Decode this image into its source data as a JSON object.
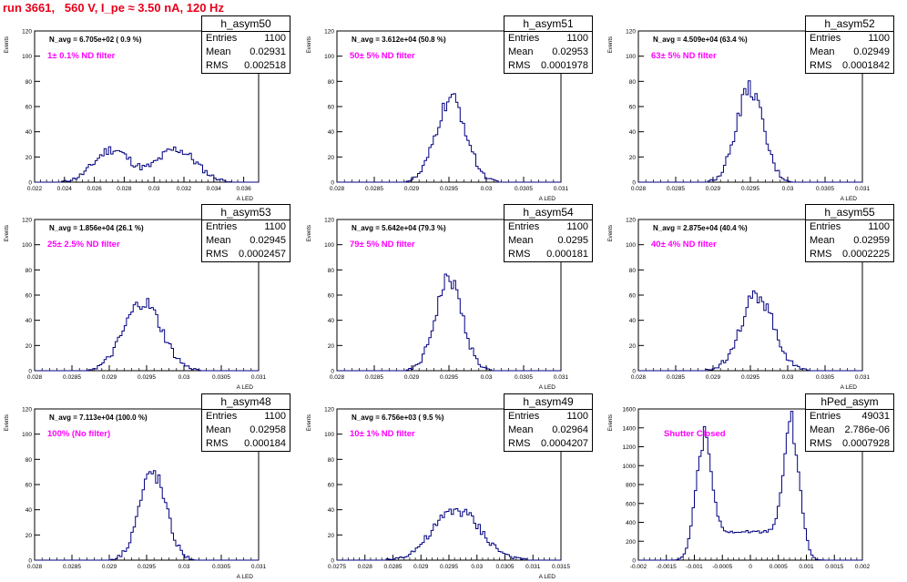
{
  "run_title": "run 3661,   560 V, I_pe ≈ 3.50 nA, 120 Hz",
  "stats_labels": {
    "entries": "Entries",
    "mean": "Mean",
    "rms": "RMS"
  },
  "colors": {
    "title": "#e8001a",
    "histogram": "#000080",
    "filter_text": "#ff00ff"
  },
  "chart_data": [
    {
      "type": "histogram",
      "name": "h_asym50",
      "navg": "N_avg = 6.705e+02 ( 0.9 %)",
      "filter": "1± 0.1% ND filter",
      "stats": {
        "entries": "1100",
        "mean": "0.02931",
        "rms": "0.002518"
      },
      "xlim": [
        0.022,
        0.037
      ],
      "xticks": [
        0.022,
        0.024,
        0.026,
        0.028,
        0.03,
        0.032,
        0.034,
        0.036
      ],
      "xticklabels": [
        "0.022",
        "0.024",
        "0.026",
        "0.028",
        "0.03",
        "0.032",
        "0.034",
        "0.036"
      ],
      "ylim": [
        0,
        120
      ],
      "yticks": [
        0,
        20,
        40,
        60,
        80,
        100,
        120
      ],
      "ylabel": "Events",
      "xlabel": "A_LED",
      "grid": false,
      "peaks": [
        {
          "mu": 0.0272,
          "sigma": 0.0012,
          "amp": 26
        },
        {
          "mu": 0.0315,
          "sigma": 0.0013,
          "amp": 26
        }
      ]
    },
    {
      "type": "histogram",
      "name": "h_asym51",
      "navg": "N_avg = 3.612e+04 (50.8 %)",
      "filter": "50± 5% ND filter",
      "stats": {
        "entries": "1100",
        "mean": "0.02953",
        "rms": "0.0001978"
      },
      "xlim": [
        0.028,
        0.031
      ],
      "xticks": [
        0.028,
        0.0285,
        0.029,
        0.0295,
        0.03,
        0.0305,
        0.031
      ],
      "xticklabels": [
        "0.028",
        "0.0285",
        "0.029",
        "0.0295",
        "0.03",
        "0.0305",
        "0.031"
      ],
      "ylim": [
        0,
        120
      ],
      "yticks": [
        0,
        20,
        40,
        60,
        80,
        100,
        120
      ],
      "ylabel": "Events",
      "xlabel": "A_LED",
      "grid": false,
      "peaks": [
        {
          "mu": 0.02953,
          "sigma": 0.0002,
          "amp": 66
        }
      ]
    },
    {
      "type": "histogram",
      "name": "h_asym52",
      "navg": "N_avg = 4.509e+04 (63.4 %)",
      "filter": "63± 5% ND filter",
      "stats": {
        "entries": "1100",
        "mean": "0.02949",
        "rms": "0.0001842"
      },
      "xlim": [
        0.028,
        0.031
      ],
      "xticks": [
        0.028,
        0.0285,
        0.029,
        0.0295,
        0.03,
        0.0305,
        0.031
      ],
      "xticklabels": [
        "0.028",
        "0.0285",
        "0.029",
        "0.0295",
        "0.03",
        "0.0305",
        "0.031"
      ],
      "ylim": [
        0,
        120
      ],
      "yticks": [
        0,
        20,
        40,
        60,
        80,
        100,
        120
      ],
      "ylabel": "Events",
      "xlabel": "A_LED",
      "grid": false,
      "peaks": [
        {
          "mu": 0.02949,
          "sigma": 0.00018,
          "amp": 74
        }
      ]
    },
    {
      "type": "histogram",
      "name": "h_asym53",
      "navg": "N_avg = 1.856e+04 (26.1 %)",
      "filter": "25± 2.5% ND filter",
      "stats": {
        "entries": "1100",
        "mean": "0.02945",
        "rms": "0.0002457"
      },
      "xlim": [
        0.028,
        0.031
      ],
      "xticks": [
        0.028,
        0.0285,
        0.029,
        0.0295,
        0.03,
        0.0305,
        0.031
      ],
      "xticklabels": [
        "0.028",
        "0.0285",
        "0.029",
        "0.0295",
        "0.03",
        "0.0305",
        "0.031"
      ],
      "ylim": [
        0,
        120
      ],
      "yticks": [
        0,
        20,
        40,
        60,
        80,
        100,
        120
      ],
      "ylabel": "Events",
      "xlabel": "A_LED",
      "grid": false,
      "peaks": [
        {
          "mu": 0.02945,
          "sigma": 0.00025,
          "amp": 54
        }
      ]
    },
    {
      "type": "histogram",
      "name": "h_asym54",
      "navg": "N_avg = 5.642e+04 (79.3 %)",
      "filter": "79± 5% ND filter",
      "stats": {
        "entries": "1100",
        "mean": "0.0295",
        "rms": "0.000181"
      },
      "xlim": [
        0.028,
        0.031
      ],
      "xticks": [
        0.028,
        0.0285,
        0.029,
        0.0295,
        0.03,
        0.0305,
        0.031
      ],
      "xticklabels": [
        "0.028",
        "0.0285",
        "0.029",
        "0.0295",
        "0.03",
        "0.0305",
        "0.031"
      ],
      "ylim": [
        0,
        120
      ],
      "yticks": [
        0,
        20,
        40,
        60,
        80,
        100,
        120
      ],
      "ylabel": "Events",
      "xlabel": "A_LED",
      "grid": false,
      "peaks": [
        {
          "mu": 0.0295,
          "sigma": 0.00018,
          "amp": 73
        }
      ]
    },
    {
      "type": "histogram",
      "name": "h_asym55",
      "navg": "N_avg = 2.875e+04 (40.4 %)",
      "filter": "40± 4% ND filter",
      "stats": {
        "entries": "1100",
        "mean": "0.02959",
        "rms": "0.0002225"
      },
      "xlim": [
        0.028,
        0.031
      ],
      "xticks": [
        0.028,
        0.0285,
        0.029,
        0.0295,
        0.03,
        0.0305,
        0.031
      ],
      "xticklabels": [
        "0.028",
        "0.0285",
        "0.029",
        "0.0295",
        "0.03",
        "0.0305",
        "0.031"
      ],
      "ylim": [
        0,
        120
      ],
      "yticks": [
        0,
        20,
        40,
        60,
        80,
        100,
        120
      ],
      "ylabel": "Events",
      "xlabel": "A_LED",
      "grid": false,
      "peaks": [
        {
          "mu": 0.02959,
          "sigma": 0.00022,
          "amp": 60
        }
      ]
    },
    {
      "type": "histogram",
      "name": "h_asym48",
      "navg": "N_avg = 7.113e+04 (100.0 %)",
      "filter": "100% (No filter)",
      "stats": {
        "entries": "1100",
        "mean": "0.02958",
        "rms": "0.000184"
      },
      "xlim": [
        0.028,
        0.031
      ],
      "xticks": [
        0.028,
        0.0285,
        0.029,
        0.0295,
        0.03,
        0.0305,
        0.031
      ],
      "xticklabels": [
        "0.028",
        "0.0285",
        "0.029",
        "0.0295",
        "0.03",
        "0.0305",
        "0.031"
      ],
      "ylim": [
        0,
        120
      ],
      "yticks": [
        0,
        20,
        40,
        60,
        80,
        100,
        120
      ],
      "ylabel": "Events",
      "xlabel": "A_LED",
      "grid": false,
      "peaks": [
        {
          "mu": 0.02958,
          "sigma": 0.00018,
          "amp": 70
        }
      ]
    },
    {
      "type": "histogram",
      "name": "h_asym49",
      "navg": "N_avg = 6.756e+03 ( 9.5 %)",
      "filter": "10± 1% ND filter",
      "stats": {
        "entries": "1100",
        "mean": "0.02964",
        "rms": "0.0004207"
      },
      "xlim": [
        0.0275,
        0.0315
      ],
      "xticks": [
        0.0275,
        0.028,
        0.0285,
        0.029,
        0.0295,
        0.03,
        0.0305,
        0.031,
        0.0315
      ],
      "xticklabels": [
        "0.0275",
        "0.028",
        "0.0285",
        "0.029",
        "0.0295",
        "0.03",
        "0.0305",
        "0.031",
        "0.0315"
      ],
      "ylim": [
        0,
        120
      ],
      "yticks": [
        0,
        20,
        40,
        60,
        80,
        100,
        120
      ],
      "ylabel": "Events",
      "xlabel": "A_LED",
      "grid": false,
      "peaks": [
        {
          "mu": 0.02964,
          "sigma": 0.00042,
          "amp": 40
        }
      ]
    },
    {
      "type": "histogram",
      "name": "hPed_asym",
      "navg": "",
      "filter": "Shutter Closed",
      "stats": {
        "entries": "49031",
        "mean": "2.786e-06",
        "rms": "0.0007928"
      },
      "xlim": [
        -0.002,
        0.002
      ],
      "xticks": [
        -0.002,
        -0.0015,
        -0.001,
        -0.0005,
        0,
        0.0005,
        0.001,
        0.0015,
        0.002
      ],
      "xticklabels": [
        "-0.002",
        "-0.0015",
        "-0.001",
        "-0.0005",
        "0",
        "0.0005",
        "0.001",
        "0.0015",
        "0.002"
      ],
      "ylim": [
        0,
        1600
      ],
      "yticks": [
        0,
        200,
        400,
        600,
        800,
        1000,
        1200,
        1400,
        1600
      ],
      "ylabel": "Events",
      "xlabel": "",
      "grid": false,
      "baseline": 300,
      "peaks": [
        {
          "mu": -0.00085,
          "sigma": 0.00014,
          "amp": 1150
        },
        {
          "mu": 0.00075,
          "sigma": 0.00014,
          "amp": 1270
        }
      ]
    }
  ]
}
